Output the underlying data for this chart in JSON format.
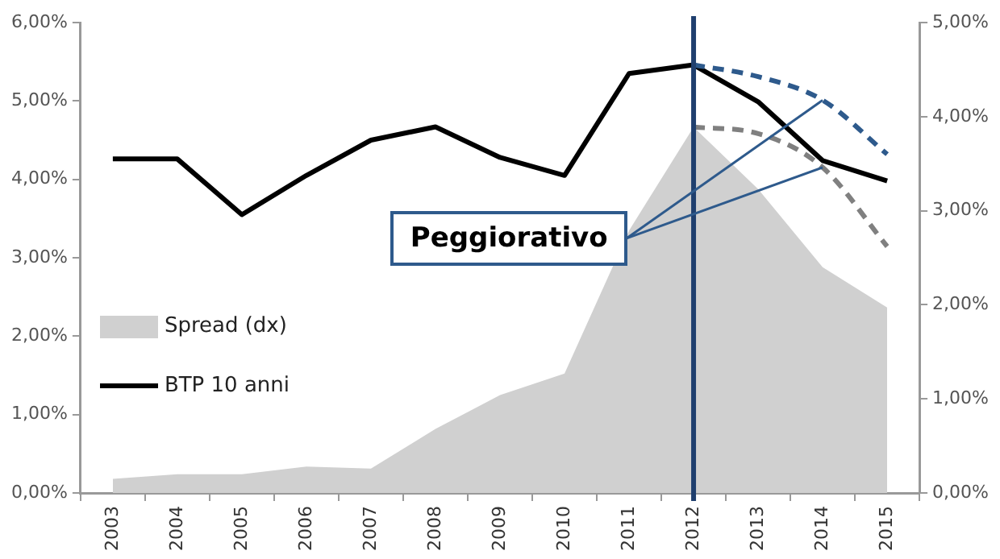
{
  "chart_data": {
    "type": "line",
    "categories": [
      "2003",
      "2004",
      "2005",
      "2006",
      "2007",
      "2008",
      "2009",
      "2010",
      "2011",
      "2012",
      "2013",
      "2014",
      "2015"
    ],
    "series": [
      {
        "name": "Spread (dx)",
        "type": "area",
        "axis": "y2",
        "color": "#d0d0d0",
        "values": [
          0.15,
          0.2,
          0.2,
          0.28,
          0.26,
          0.68,
          1.04,
          1.27,
          2.79,
          3.89,
          3.23,
          2.4,
          1.97
        ]
      },
      {
        "name": "BTP 10 anni",
        "type": "line",
        "color": "#000000",
        "values": [
          4.26,
          4.26,
          3.55,
          4.05,
          4.5,
          4.67,
          4.28,
          4.05,
          5.35,
          5.46,
          4.99,
          4.24,
          3.98
        ]
      },
      {
        "type": "line",
        "line_style": "dashed",
        "color": "#2e5a8c",
        "values": [
          null,
          null,
          null,
          null,
          null,
          null,
          null,
          null,
          null,
          5.46,
          5.31,
          5.01,
          4.32
        ]
      },
      {
        "type": "line",
        "line_style": "dashed",
        "axis": "y2",
        "color": "#808080",
        "values": [
          null,
          null,
          null,
          null,
          null,
          null,
          null,
          null,
          null,
          3.89,
          3.82,
          3.46,
          2.62
        ]
      }
    ],
    "ylim": [
      0,
      6
    ],
    "yticks": [
      {
        "value": 0,
        "label": "0,00%"
      },
      {
        "value": 1,
        "label": "1,00%"
      },
      {
        "value": 2,
        "label": "2,00%"
      },
      {
        "value": 3,
        "label": "3,00%"
      },
      {
        "value": 4,
        "label": "4,00%"
      },
      {
        "value": 5,
        "label": "5,00%"
      },
      {
        "value": 6,
        "label": "6,00%"
      }
    ],
    "y2lim": [
      0,
      5
    ],
    "y2ticks": [
      {
        "value": 0,
        "label": "0,00%"
      },
      {
        "value": 1,
        "label": "1,00%"
      },
      {
        "value": 2,
        "label": "2,00%"
      },
      {
        "value": 3,
        "label": "3,00%"
      },
      {
        "value": 4,
        "label": "4,00%"
      },
      {
        "value": 5,
        "label": "5,00%"
      }
    ],
    "ref_lines": [
      {
        "axis": "x",
        "value": "2012",
        "color": "#1f3f6e"
      }
    ],
    "annotations": [
      {
        "text": "Peggiorativo",
        "x": "2014",
        "y": 5.01
      }
    ],
    "legend": "bottom left",
    "grid": false,
    "marker": "none"
  }
}
